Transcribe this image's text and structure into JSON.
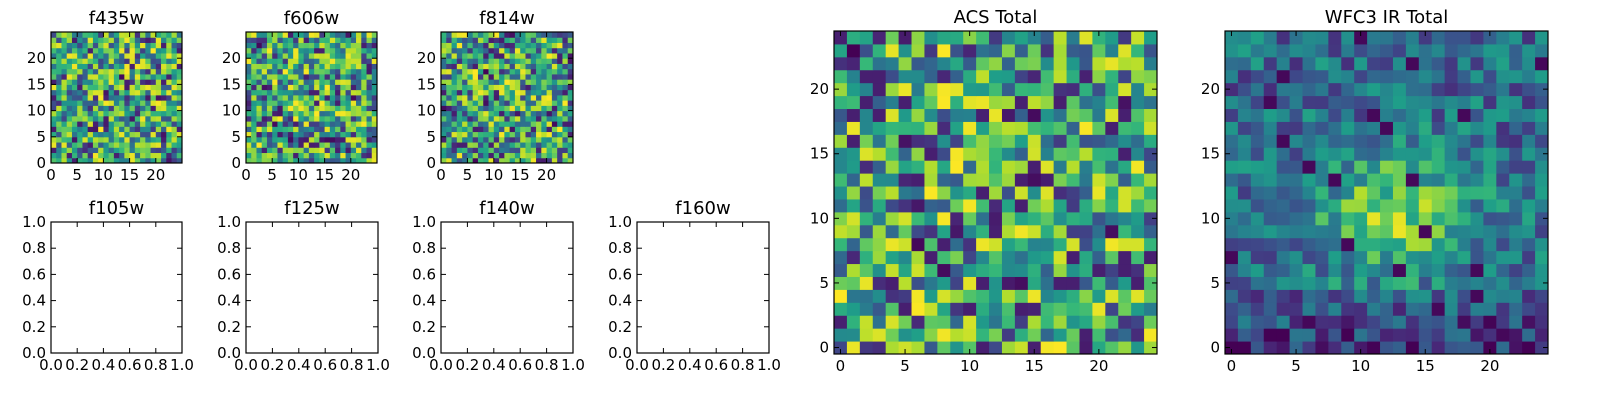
{
  "chart_data": [
    {
      "type": "heatmap",
      "title": "f435w",
      "xlim": [
        0,
        25
      ],
      "ylim": [
        0,
        25
      ],
      "xticks": [
        "0",
        "5",
        "10",
        "15",
        "20"
      ],
      "yticks": [
        "0",
        "5",
        "10",
        "15",
        "20"
      ],
      "grid": false,
      "colormap": "viridis",
      "pattern": "noise"
    },
    {
      "type": "heatmap",
      "title": "f606w",
      "xlim": [
        0,
        25
      ],
      "ylim": [
        0,
        25
      ],
      "xticks": [
        "0",
        "5",
        "10",
        "15",
        "20"
      ],
      "yticks": [
        "0",
        "5",
        "10",
        "15",
        "20"
      ],
      "grid": false,
      "colormap": "viridis",
      "pattern": "noise"
    },
    {
      "type": "heatmap",
      "title": "f814w",
      "xlim": [
        0,
        25
      ],
      "ylim": [
        0,
        25
      ],
      "xticks": [
        "0",
        "5",
        "10",
        "15",
        "20"
      ],
      "yticks": [
        "0",
        "5",
        "10",
        "15",
        "20"
      ],
      "grid": false,
      "colormap": "viridis",
      "pattern": "noise"
    },
    {
      "type": "empty",
      "title": "f105w",
      "xlim": [
        0,
        1
      ],
      "ylim": [
        0,
        1
      ],
      "xticks": [
        "0.0",
        "0.2",
        "0.4",
        "0.6",
        "0.8",
        "1.0"
      ],
      "yticks": [
        "0.0",
        "0.2",
        "0.4",
        "0.6",
        "0.8",
        "1.0"
      ],
      "grid": false
    },
    {
      "type": "empty",
      "title": "f125w",
      "xlim": [
        0,
        1
      ],
      "ylim": [
        0,
        1
      ],
      "xticks": [
        "0.0",
        "0.2",
        "0.4",
        "0.6",
        "0.8",
        "1.0"
      ],
      "yticks": [
        "0.0",
        "0.2",
        "0.4",
        "0.6",
        "0.8",
        "1.0"
      ],
      "grid": false
    },
    {
      "type": "empty",
      "title": "f140w",
      "xlim": [
        0,
        1
      ],
      "ylim": [
        0,
        1
      ],
      "xticks": [
        "0.0",
        "0.2",
        "0.4",
        "0.6",
        "0.8",
        "1.0"
      ],
      "yticks": [
        "0.0",
        "0.2",
        "0.4",
        "0.6",
        "0.8",
        "1.0"
      ],
      "grid": false
    },
    {
      "type": "empty",
      "title": "f160w",
      "xlim": [
        0,
        1
      ],
      "ylim": [
        0,
        1
      ],
      "xticks": [
        "0.0",
        "0.2",
        "0.4",
        "0.6",
        "0.8",
        "1.0"
      ],
      "yticks": [
        "0.0",
        "0.2",
        "0.4",
        "0.6",
        "0.8",
        "1.0"
      ],
      "grid": false
    },
    {
      "type": "heatmap",
      "title": "ACS Total",
      "xlim": [
        -0.5,
        24.5
      ],
      "ylim": [
        -0.5,
        24.5
      ],
      "xticks": [
        "0",
        "5",
        "10",
        "15",
        "20"
      ],
      "yticks": [
        "0",
        "5",
        "10",
        "15",
        "20"
      ],
      "grid": false,
      "colormap": "viridis",
      "pattern": "noise"
    },
    {
      "type": "heatmap",
      "title": "WFC3 IR Total",
      "xlim": [
        -0.5,
        24.5
      ],
      "ylim": [
        -0.5,
        24.5
      ],
      "xticks": [
        "0",
        "5",
        "10",
        "15",
        "20"
      ],
      "yticks": [
        "0",
        "5",
        "10",
        "15",
        "20"
      ],
      "grid": false,
      "colormap": "viridis",
      "pattern": "smooth-peak-center"
    }
  ]
}
